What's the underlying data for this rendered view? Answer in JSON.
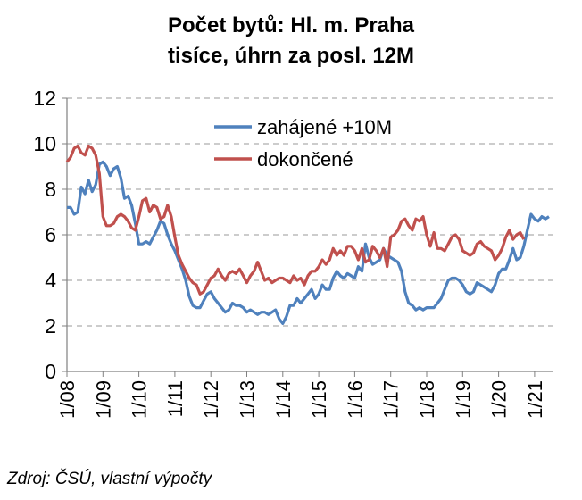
{
  "chart_data": {
    "type": "line",
    "title": "Počet bytů: Hl. m. Praha",
    "subtitle": "tisíce, úhrn za posl. 12M",
    "source": "Zdroj: ČSÚ, vlastní výpočty",
    "xlabel": "",
    "ylabel": "",
    "ylim": [
      0,
      12
    ],
    "yticks": [
      "0",
      "2",
      "4",
      "6",
      "8",
      "10",
      "12"
    ],
    "xticks": [
      "1/08",
      "1/09",
      "1/10",
      "1/11",
      "1/12",
      "1/13",
      "1/14",
      "1/15",
      "1/16",
      "1/17",
      "1/18",
      "1/19",
      "1/20",
      "1/21"
    ],
    "grid": "horizontal dashed",
    "legend_position": "top-right",
    "series": [
      {
        "name": "zahájené +10M",
        "color": "#4f81bd",
        "points": [
          [
            2008.0,
            7.2
          ],
          [
            2008.1,
            7.2
          ],
          [
            2008.2,
            6.9
          ],
          [
            2008.3,
            7.0
          ],
          [
            2008.4,
            8.1
          ],
          [
            2008.5,
            7.8
          ],
          [
            2008.6,
            8.4
          ],
          [
            2008.7,
            7.9
          ],
          [
            2008.8,
            8.2
          ],
          [
            2008.9,
            9.1
          ],
          [
            2009.0,
            9.2
          ],
          [
            2009.1,
            9.0
          ],
          [
            2009.2,
            8.6
          ],
          [
            2009.3,
            8.9
          ],
          [
            2009.4,
            9.0
          ],
          [
            2009.5,
            8.5
          ],
          [
            2009.6,
            7.6
          ],
          [
            2009.7,
            7.7
          ],
          [
            2009.8,
            7.3
          ],
          [
            2009.9,
            6.5
          ],
          [
            2010.0,
            5.6
          ],
          [
            2010.1,
            5.6
          ],
          [
            2010.2,
            5.7
          ],
          [
            2010.3,
            5.6
          ],
          [
            2010.4,
            5.9
          ],
          [
            2010.5,
            6.2
          ],
          [
            2010.6,
            6.6
          ],
          [
            2010.7,
            6.5
          ],
          [
            2010.8,
            6.0
          ],
          [
            2010.9,
            5.6
          ],
          [
            2011.0,
            5.3
          ],
          [
            2011.1,
            4.9
          ],
          [
            2011.2,
            4.5
          ],
          [
            2011.3,
            4.0
          ],
          [
            2011.4,
            3.3
          ],
          [
            2011.5,
            2.9
          ],
          [
            2011.6,
            2.8
          ],
          [
            2011.7,
            2.8
          ],
          [
            2011.8,
            3.1
          ],
          [
            2011.9,
            3.4
          ],
          [
            2012.0,
            3.5
          ],
          [
            2012.1,
            3.2
          ],
          [
            2012.2,
            3.0
          ],
          [
            2012.3,
            2.8
          ],
          [
            2012.4,
            2.6
          ],
          [
            2012.5,
            2.7
          ],
          [
            2012.6,
            3.0
          ],
          [
            2012.7,
            2.9
          ],
          [
            2012.8,
            2.9
          ],
          [
            2012.9,
            2.8
          ],
          [
            2013.0,
            2.6
          ],
          [
            2013.1,
            2.7
          ],
          [
            2013.2,
            2.6
          ],
          [
            2013.3,
            2.5
          ],
          [
            2013.4,
            2.6
          ],
          [
            2013.5,
            2.6
          ],
          [
            2013.6,
            2.5
          ],
          [
            2013.7,
            2.6
          ],
          [
            2013.8,
            2.7
          ],
          [
            2013.9,
            2.3
          ],
          [
            2014.0,
            2.1
          ],
          [
            2014.1,
            2.4
          ],
          [
            2014.2,
            2.9
          ],
          [
            2014.3,
            2.9
          ],
          [
            2014.4,
            3.2
          ],
          [
            2014.5,
            3.0
          ],
          [
            2014.6,
            3.2
          ],
          [
            2014.7,
            3.4
          ],
          [
            2014.8,
            3.6
          ],
          [
            2014.9,
            3.2
          ],
          [
            2015.0,
            3.4
          ],
          [
            2015.1,
            3.8
          ],
          [
            2015.2,
            3.6
          ],
          [
            2015.3,
            3.6
          ],
          [
            2015.4,
            4.1
          ],
          [
            2015.5,
            4.4
          ],
          [
            2015.6,
            4.2
          ],
          [
            2015.7,
            4.1
          ],
          [
            2015.8,
            4.3
          ],
          [
            2015.9,
            4.2
          ],
          [
            2016.0,
            4.1
          ],
          [
            2016.1,
            4.6
          ],
          [
            2016.2,
            4.4
          ],
          [
            2016.3,
            5.6
          ],
          [
            2016.4,
            5.0
          ],
          [
            2016.5,
            4.7
          ],
          [
            2016.6,
            4.8
          ],
          [
            2016.7,
            4.9
          ],
          [
            2016.8,
            5.4
          ],
          [
            2016.9,
            5.1
          ],
          [
            2017.0,
            5.0
          ],
          [
            2017.1,
            4.9
          ],
          [
            2017.2,
            4.8
          ],
          [
            2017.3,
            4.4
          ],
          [
            2017.4,
            3.5
          ],
          [
            2017.5,
            3.0
          ],
          [
            2017.6,
            2.9
          ],
          [
            2017.7,
            2.7
          ],
          [
            2017.8,
            2.8
          ],
          [
            2017.9,
            2.7
          ],
          [
            2018.0,
            2.8
          ],
          [
            2018.1,
            2.8
          ],
          [
            2018.2,
            2.8
          ],
          [
            2018.3,
            3.0
          ],
          [
            2018.4,
            3.2
          ],
          [
            2018.5,
            3.6
          ],
          [
            2018.6,
            4.0
          ],
          [
            2018.7,
            4.1
          ],
          [
            2018.8,
            4.1
          ],
          [
            2018.9,
            4.0
          ],
          [
            2019.0,
            3.8
          ],
          [
            2019.1,
            3.5
          ],
          [
            2019.2,
            3.4
          ],
          [
            2019.3,
            3.5
          ],
          [
            2019.4,
            3.9
          ],
          [
            2019.5,
            3.8
          ],
          [
            2019.6,
            3.7
          ],
          [
            2019.7,
            3.6
          ],
          [
            2019.8,
            3.5
          ],
          [
            2019.9,
            3.8
          ],
          [
            2020.0,
            4.3
          ],
          [
            2020.1,
            4.5
          ],
          [
            2020.2,
            4.5
          ],
          [
            2020.3,
            4.9
          ],
          [
            2020.4,
            5.4
          ],
          [
            2020.5,
            4.9
          ],
          [
            2020.6,
            5.0
          ],
          [
            2020.7,
            5.5
          ],
          [
            2020.8,
            6.2
          ],
          [
            2020.9,
            6.9
          ],
          [
            2021.0,
            6.7
          ],
          [
            2021.1,
            6.6
          ],
          [
            2021.2,
            6.8
          ],
          [
            2021.3,
            6.7
          ],
          [
            2021.4,
            6.8
          ]
        ]
      },
      {
        "name": "dokončené",
        "color": "#c0504d",
        "points": [
          [
            2008.0,
            9.2
          ],
          [
            2008.1,
            9.4
          ],
          [
            2008.2,
            9.8
          ],
          [
            2008.3,
            9.9
          ],
          [
            2008.4,
            9.6
          ],
          [
            2008.5,
            9.5
          ],
          [
            2008.6,
            9.9
          ],
          [
            2008.7,
            9.8
          ],
          [
            2008.8,
            9.5
          ],
          [
            2008.9,
            8.7
          ],
          [
            2009.0,
            6.8
          ],
          [
            2009.1,
            6.4
          ],
          [
            2009.2,
            6.4
          ],
          [
            2009.3,
            6.5
          ],
          [
            2009.4,
            6.8
          ],
          [
            2009.5,
            6.9
          ],
          [
            2009.6,
            6.8
          ],
          [
            2009.7,
            6.6
          ],
          [
            2009.8,
            6.3
          ],
          [
            2009.9,
            6.2
          ],
          [
            2010.0,
            6.8
          ],
          [
            2010.1,
            7.5
          ],
          [
            2010.2,
            7.6
          ],
          [
            2010.3,
            7.0
          ],
          [
            2010.4,
            7.3
          ],
          [
            2010.5,
            7.2
          ],
          [
            2010.6,
            6.7
          ],
          [
            2010.7,
            6.8
          ],
          [
            2010.8,
            7.3
          ],
          [
            2010.9,
            6.8
          ],
          [
            2011.0,
            5.9
          ],
          [
            2011.1,
            5.1
          ],
          [
            2011.2,
            4.7
          ],
          [
            2011.3,
            4.4
          ],
          [
            2011.4,
            4.1
          ],
          [
            2011.5,
            3.9
          ],
          [
            2011.6,
            3.8
          ],
          [
            2011.7,
            3.4
          ],
          [
            2011.8,
            3.5
          ],
          [
            2011.9,
            3.8
          ],
          [
            2012.0,
            4.1
          ],
          [
            2012.1,
            4.2
          ],
          [
            2012.2,
            4.5
          ],
          [
            2012.3,
            4.2
          ],
          [
            2012.4,
            4.0
          ],
          [
            2012.5,
            4.3
          ],
          [
            2012.6,
            4.4
          ],
          [
            2012.7,
            4.3
          ],
          [
            2012.8,
            4.5
          ],
          [
            2012.9,
            4.2
          ],
          [
            2013.0,
            3.9
          ],
          [
            2013.1,
            4.2
          ],
          [
            2013.2,
            4.4
          ],
          [
            2013.3,
            4.8
          ],
          [
            2013.4,
            4.4
          ],
          [
            2013.5,
            4.0
          ],
          [
            2013.6,
            4.1
          ],
          [
            2013.7,
            3.9
          ],
          [
            2013.8,
            4.0
          ],
          [
            2013.9,
            4.1
          ],
          [
            2014.0,
            4.1
          ],
          [
            2014.1,
            4.0
          ],
          [
            2014.2,
            3.9
          ],
          [
            2014.3,
            4.2
          ],
          [
            2014.4,
            4.0
          ],
          [
            2014.5,
            4.1
          ],
          [
            2014.6,
            3.8
          ],
          [
            2014.7,
            4.2
          ],
          [
            2014.8,
            4.4
          ],
          [
            2014.9,
            4.4
          ],
          [
            2015.0,
            4.6
          ],
          [
            2015.1,
            4.9
          ],
          [
            2015.2,
            4.7
          ],
          [
            2015.3,
            4.9
          ],
          [
            2015.4,
            5.4
          ],
          [
            2015.5,
            5.1
          ],
          [
            2015.6,
            5.3
          ],
          [
            2015.7,
            5.1
          ],
          [
            2015.8,
            5.5
          ],
          [
            2015.9,
            5.5
          ],
          [
            2016.0,
            5.3
          ],
          [
            2016.1,
            4.9
          ],
          [
            2016.2,
            5.4
          ],
          [
            2016.3,
            4.8
          ],
          [
            2016.4,
            4.9
          ],
          [
            2016.5,
            5.5
          ],
          [
            2016.6,
            5.3
          ],
          [
            2016.7,
            5.0
          ],
          [
            2016.8,
            5.4
          ],
          [
            2016.9,
            4.6
          ],
          [
            2017.0,
            5.9
          ],
          [
            2017.1,
            6.0
          ],
          [
            2017.2,
            6.2
          ],
          [
            2017.3,
            6.6
          ],
          [
            2017.4,
            6.7
          ],
          [
            2017.5,
            6.4
          ],
          [
            2017.6,
            6.2
          ],
          [
            2017.7,
            6.7
          ],
          [
            2017.8,
            6.6
          ],
          [
            2017.9,
            6.8
          ],
          [
            2018.0,
            6.0
          ],
          [
            2018.1,
            5.5
          ],
          [
            2018.2,
            6.1
          ],
          [
            2018.3,
            5.4
          ],
          [
            2018.4,
            5.4
          ],
          [
            2018.5,
            5.3
          ],
          [
            2018.6,
            5.6
          ],
          [
            2018.7,
            5.9
          ],
          [
            2018.8,
            6.0
          ],
          [
            2018.9,
            5.8
          ],
          [
            2019.0,
            5.3
          ],
          [
            2019.1,
            5.2
          ],
          [
            2019.2,
            5.1
          ],
          [
            2019.3,
            5.2
          ],
          [
            2019.4,
            5.6
          ],
          [
            2019.5,
            5.7
          ],
          [
            2019.6,
            5.5
          ],
          [
            2019.7,
            5.4
          ],
          [
            2019.8,
            5.3
          ],
          [
            2019.9,
            4.9
          ],
          [
            2020.0,
            5.1
          ],
          [
            2020.1,
            5.4
          ],
          [
            2020.2,
            5.9
          ],
          [
            2020.3,
            6.2
          ],
          [
            2020.4,
            5.8
          ],
          [
            2020.5,
            6.0
          ],
          [
            2020.6,
            6.1
          ],
          [
            2020.7,
            5.8
          ]
        ]
      }
    ]
  }
}
